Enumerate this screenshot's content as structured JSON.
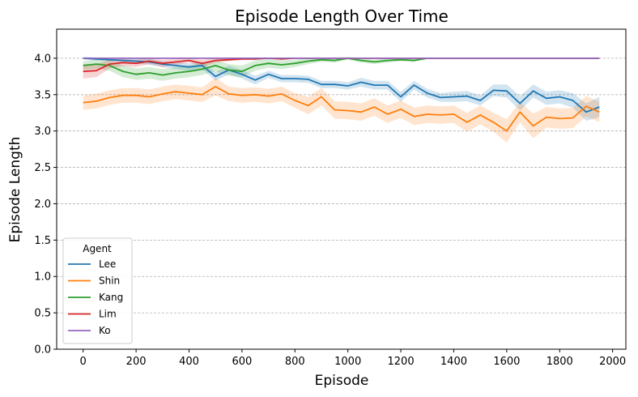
{
  "chart_data": {
    "type": "line",
    "title": "Episode Length Over Time",
    "xlabel": "Episode",
    "ylabel": "Episode Length",
    "xlim": [
      -100,
      2050
    ],
    "ylim": [
      0.0,
      4.4
    ],
    "xticks": [
      0,
      200,
      400,
      600,
      800,
      1000,
      1200,
      1400,
      1600,
      1800,
      2000
    ],
    "yticks": [
      0.0,
      0.5,
      1.0,
      1.5,
      2.0,
      2.5,
      3.0,
      3.5,
      4.0
    ],
    "grid": "horizontal dashed",
    "legend_title": "Agent",
    "legend_position": "lower-left",
    "x": [
      0,
      50,
      100,
      150,
      200,
      250,
      300,
      350,
      400,
      450,
      500,
      550,
      600,
      650,
      700,
      750,
      800,
      850,
      900,
      950,
      1000,
      1050,
      1100,
      1150,
      1200,
      1250,
      1300,
      1350,
      1400,
      1450,
      1500,
      1550,
      1600,
      1650,
      1700,
      1750,
      1800,
      1850,
      1900,
      1950
    ],
    "series": [
      {
        "name": "Lee",
        "color": "#1f77b4",
        "values": [
          4.0,
          3.99,
          3.98,
          3.97,
          3.96,
          3.95,
          3.92,
          3.9,
          3.88,
          3.9,
          3.75,
          3.84,
          3.78,
          3.7,
          3.78,
          3.72,
          3.72,
          3.71,
          3.64,
          3.64,
          3.62,
          3.67,
          3.63,
          3.63,
          3.47,
          3.63,
          3.52,
          3.46,
          3.47,
          3.48,
          3.42,
          3.56,
          3.55,
          3.38,
          3.55,
          3.45,
          3.47,
          3.42,
          3.26,
          3.33
        ],
        "band": [
          0.02,
          0.02,
          0.02,
          0.03,
          0.03,
          0.04,
          0.04,
          0.05,
          0.05,
          0.05,
          0.06,
          0.06,
          0.06,
          0.06,
          0.05,
          0.05,
          0.05,
          0.05,
          0.05,
          0.05,
          0.05,
          0.06,
          0.06,
          0.06,
          0.07,
          0.06,
          0.06,
          0.06,
          0.07,
          0.07,
          0.07,
          0.08,
          0.09,
          0.1,
          0.09,
          0.09,
          0.09,
          0.1,
          0.12,
          0.14
        ]
      },
      {
        "name": "Shin",
        "color": "#ff7f0e",
        "values": [
          3.39,
          3.41,
          3.46,
          3.49,
          3.49,
          3.47,
          3.51,
          3.54,
          3.52,
          3.5,
          3.61,
          3.51,
          3.49,
          3.5,
          3.48,
          3.51,
          3.42,
          3.35,
          3.47,
          3.29,
          3.28,
          3.26,
          3.33,
          3.23,
          3.3,
          3.2,
          3.23,
          3.22,
          3.23,
          3.12,
          3.22,
          3.12,
          3.0,
          3.26,
          3.07,
          3.19,
          3.17,
          3.18,
          3.34,
          3.26
        ],
        "band": [
          0.1,
          0.1,
          0.1,
          0.1,
          0.1,
          0.1,
          0.1,
          0.1,
          0.1,
          0.1,
          0.12,
          0.1,
          0.1,
          0.1,
          0.1,
          0.1,
          0.1,
          0.12,
          0.12,
          0.12,
          0.12,
          0.12,
          0.12,
          0.12,
          0.12,
          0.12,
          0.12,
          0.12,
          0.12,
          0.13,
          0.13,
          0.13,
          0.16,
          0.14,
          0.17,
          0.14,
          0.14,
          0.14,
          0.14,
          0.14
        ]
      },
      {
        "name": "Kang",
        "color": "#2ca02c",
        "values": [
          3.9,
          3.92,
          3.9,
          3.82,
          3.78,
          3.8,
          3.77,
          3.8,
          3.82,
          3.85,
          3.9,
          3.84,
          3.82,
          3.9,
          3.93,
          3.91,
          3.93,
          3.96,
          3.98,
          3.97,
          4.0,
          3.97,
          3.95,
          3.97,
          3.98,
          3.97,
          4.0,
          4.0,
          4.0,
          4.0,
          4.0,
          4.0,
          4.0,
          4.0,
          4.0,
          4.0,
          4.0,
          4.0,
          4.0,
          4.0
        ],
        "band": [
          0.06,
          0.06,
          0.07,
          0.08,
          0.08,
          0.08,
          0.08,
          0.08,
          0.08,
          0.08,
          0.08,
          0.08,
          0.08,
          0.07,
          0.06,
          0.06,
          0.05,
          0.04,
          0.03,
          0.03,
          0.02,
          0.03,
          0.03,
          0.03,
          0.02,
          0.02,
          0.0,
          0.0,
          0.0,
          0.0,
          0.0,
          0.0,
          0.0,
          0.0,
          0.0,
          0.0,
          0.0,
          0.0,
          0.0,
          0.0
        ]
      },
      {
        "name": "Lim",
        "color": "#d62728",
        "values": [
          3.82,
          3.83,
          3.92,
          3.94,
          3.93,
          3.96,
          3.93,
          3.95,
          3.97,
          3.93,
          3.97,
          3.98,
          3.99,
          3.99,
          4.0,
          3.99,
          4.0,
          4.0,
          4.0,
          4.0,
          4.0,
          4.0,
          4.0,
          4.0,
          4.0,
          4.0,
          4.0,
          4.0,
          4.0,
          4.0,
          4.0,
          4.0,
          4.0,
          4.0,
          4.0,
          4.0,
          4.0,
          4.0,
          4.0,
          4.0
        ],
        "band": [
          0.1,
          0.09,
          0.06,
          0.05,
          0.05,
          0.04,
          0.05,
          0.04,
          0.03,
          0.05,
          0.03,
          0.02,
          0.01,
          0.01,
          0.0,
          0.01,
          0.0,
          0.0,
          0.0,
          0.0,
          0.0,
          0.0,
          0.0,
          0.0,
          0.0,
          0.0,
          0.0,
          0.0,
          0.0,
          0.0,
          0.0,
          0.0,
          0.0,
          0.0,
          0.0,
          0.0,
          0.0,
          0.0,
          0.0,
          0.0
        ]
      },
      {
        "name": "Ko",
        "color": "#9467bd",
        "values": [
          4.0,
          4.0,
          4.0,
          4.0,
          4.0,
          4.0,
          4.0,
          4.0,
          4.0,
          4.0,
          4.0,
          4.0,
          4.0,
          4.0,
          4.0,
          4.0,
          4.0,
          4.0,
          4.0,
          4.0,
          4.0,
          4.0,
          4.0,
          4.0,
          4.0,
          4.0,
          4.0,
          4.0,
          4.0,
          4.0,
          4.0,
          4.0,
          4.0,
          4.0,
          4.0,
          4.0,
          4.0,
          4.0,
          4.0,
          4.0
        ],
        "band": [
          0,
          0,
          0,
          0,
          0,
          0,
          0,
          0,
          0,
          0,
          0,
          0,
          0,
          0,
          0,
          0,
          0,
          0,
          0,
          0,
          0,
          0,
          0,
          0,
          0,
          0,
          0,
          0,
          0,
          0,
          0,
          0,
          0,
          0,
          0,
          0,
          0,
          0,
          0,
          0
        ]
      }
    ]
  }
}
